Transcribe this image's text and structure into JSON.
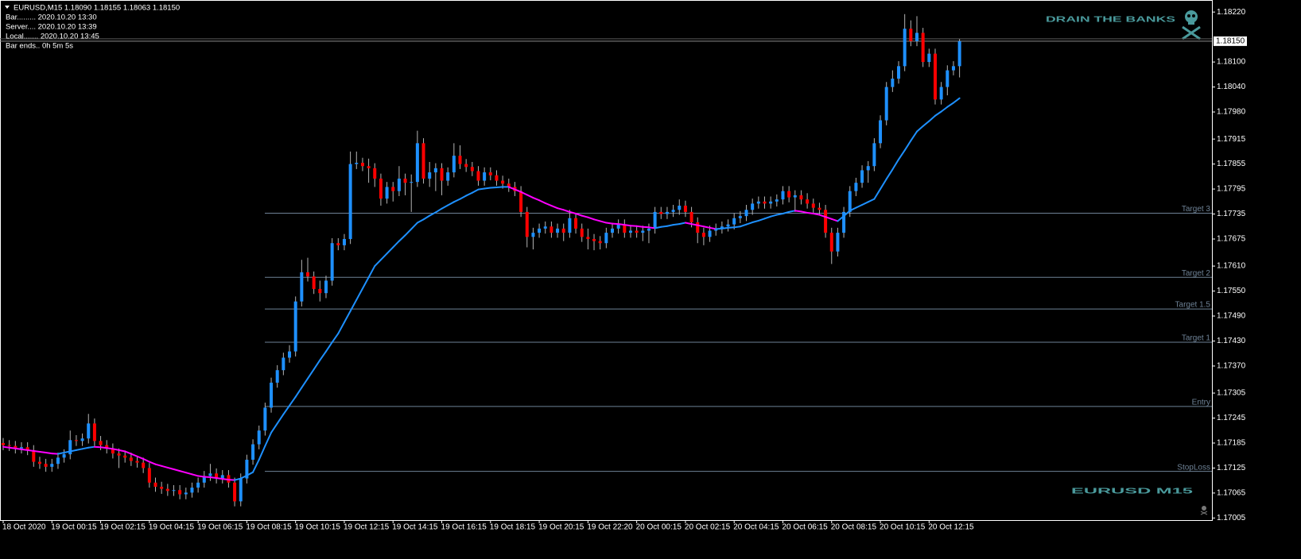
{
  "chart_data": {
    "type": "candlestick",
    "info": [
      "EURUSD,M15  1.18090 1.18155 1.18063 1.18150",
      "Bar......... 2020.10.20 13:30",
      "Server.... 2020.10.20 13:39",
      "Local....... 2020.10.20 13:45",
      "Bar ends.. 0h 5m 5s"
    ],
    "watermarks": [
      "DRAIN THE BANKS",
      "EURUSD M15"
    ],
    "categories": [
      "18 Oct 2020",
      null,
      null,
      null,
      null,
      null,
      null,
      null,
      "19 Oct 00:15",
      null,
      null,
      null,
      null,
      null,
      null,
      null,
      "19 Oct 02:15",
      null,
      null,
      null,
      null,
      null,
      null,
      null,
      "19 Oct 04:15",
      null,
      null,
      null,
      null,
      null,
      null,
      null,
      "19 Oct 06:15",
      null,
      null,
      null,
      null,
      null,
      null,
      null,
      "19 Oct 08:15",
      null,
      null,
      null,
      null,
      null,
      null,
      null,
      "19 Oct 10:15",
      null,
      null,
      null,
      null,
      null,
      null,
      null,
      "19 Oct 12:15",
      null,
      null,
      null,
      null,
      null,
      null,
      null,
      "19 Oct 14:15",
      null,
      null,
      null,
      null,
      null,
      null,
      null,
      "19 Oct 16:15",
      null,
      null,
      null,
      null,
      null,
      null,
      null,
      "19 Oct 18:15",
      null,
      null,
      null,
      null,
      null,
      null,
      null,
      "19 Oct 20:15",
      null,
      null,
      null,
      null,
      null,
      null,
      null,
      "19 Oct 22:20",
      null,
      null,
      null,
      null,
      null,
      null,
      null,
      "20 Oct 00:15",
      null,
      null,
      null,
      null,
      null,
      null,
      null,
      "20 Oct 02:15",
      null,
      null,
      null,
      null,
      null,
      null,
      null,
      "20 Oct 04:15",
      null,
      null,
      null,
      null,
      null,
      null,
      null,
      "20 Oct 06:15",
      null,
      null,
      null,
      null,
      null,
      null,
      null,
      "20 Oct 08:15",
      null,
      null,
      null,
      null,
      null,
      null,
      null,
      "20 Oct 10:15",
      null,
      null,
      null,
      null,
      null,
      null,
      null,
      "20 Oct 12:15",
      null,
      null,
      null,
      null,
      null
    ],
    "open": [
      1.17185,
      1.1718,
      1.17178,
      1.17172,
      1.17175,
      1.17168,
      1.1714,
      1.17135,
      1.17128,
      1.17135,
      1.1715,
      1.17158,
      1.17192,
      1.1719,
      1.17196,
      1.17232,
      1.1719,
      1.1718,
      1.17172,
      1.1716,
      1.17155,
      1.1715,
      1.17142,
      1.17138,
      1.17125,
      1.1709,
      1.1708,
      1.17075,
      1.1707,
      1.17072,
      1.17062,
      1.17066,
      1.17078,
      1.1709,
      1.17106,
      1.17112,
      1.171,
      1.17108,
      1.1709,
      1.17045,
      1.171,
      1.17145,
      1.17182,
      1.17215,
      1.1727,
      1.1733,
      1.1736,
      1.1739,
      1.17405,
      1.17525,
      1.17595,
      1.17585,
      1.17555,
      1.17545,
      1.17575,
      1.17665,
      1.1766,
      1.17675,
      1.17855,
      1.17858,
      1.1785,
      1.17845,
      1.1782,
      1.17772,
      1.178,
      1.1779,
      1.1782,
      1.1781,
      1.17812,
      1.17905,
      1.1782,
      1.17835,
      1.17845,
      1.17815,
      1.17835,
      1.17875,
      1.17855,
      1.17848,
      1.17838,
      1.17815,
      1.17835,
      1.17828,
      1.17815,
      1.17808,
      1.178,
      1.1779,
      1.1774,
      1.1768,
      1.1769,
      1.177,
      1.17705,
      1.1769,
      1.177,
      1.1769,
      1.17725,
      1.177,
      1.1768,
      1.17675,
      1.1767,
      1.17665,
      1.1769,
      1.177,
      1.1771,
      1.1769,
      1.17695,
      1.1769,
      1.17695,
      1.177,
      1.1774,
      1.17735,
      1.1774,
      1.17745,
      1.17755,
      1.1774,
      1.17715,
      1.1769,
      1.1768,
      1.17695,
      1.177,
      1.17705,
      1.1771,
      1.17725,
      1.1773,
      1.17745,
      1.1776,
      1.17765,
      1.1776,
      1.17765,
      1.1777,
      1.1779,
      1.17775,
      1.1778,
      1.1777,
      1.1776,
      1.1775,
      1.17745,
      1.1769,
      1.17645,
      1.1769,
      1.1774,
      1.1779,
      1.1781,
      1.1784,
      1.1785,
      1.17905,
      1.1796,
      1.1804,
      1.1806,
      1.1809,
      1.1818,
      1.1815,
      1.1817,
      1.181,
      1.1812,
      1.1801,
      1.1804,
      1.1808,
      1.1809
    ],
    "high": [
      1.17197,
      1.17192,
      1.1719,
      1.17187,
      1.17187,
      1.1718,
      1.17152,
      1.17147,
      1.17147,
      1.17162,
      1.1717,
      1.17215,
      1.17204,
      1.17208,
      1.17255,
      1.17244,
      1.17202,
      1.17192,
      1.17184,
      1.17172,
      1.17167,
      1.17162,
      1.17154,
      1.1715,
      1.17137,
      1.17102,
      1.17092,
      1.17087,
      1.17084,
      1.17084,
      1.17078,
      1.1709,
      1.17102,
      1.17118,
      1.17135,
      1.17124,
      1.1712,
      1.1712,
      1.17102,
      1.17112,
      1.17157,
      1.17194,
      1.17227,
      1.17282,
      1.17342,
      1.17372,
      1.17402,
      1.1742,
      1.17537,
      1.17625,
      1.1763,
      1.17597,
      1.17575,
      1.17587,
      1.17677,
      1.17677,
      1.17687,
      1.17885,
      1.17885,
      1.1787,
      1.17868,
      1.17857,
      1.17832,
      1.17812,
      1.17812,
      1.1785,
      1.17832,
      1.1783,
      1.17935,
      1.17917,
      1.1786,
      1.17857,
      1.17857,
      1.17847,
      1.17905,
      1.179,
      1.17867,
      1.1786,
      1.1785,
      1.17847,
      1.17847,
      1.1784,
      1.17827,
      1.1782,
      1.17812,
      1.17802,
      1.17752,
      1.17702,
      1.17712,
      1.17717,
      1.17717,
      1.17712,
      1.17712,
      1.17745,
      1.17737,
      1.17712,
      1.177,
      1.17687,
      1.17682,
      1.17702,
      1.17712,
      1.17722,
      1.17722,
      1.17707,
      1.17707,
      1.17707,
      1.17712,
      1.17752,
      1.17752,
      1.17752,
      1.17757,
      1.1777,
      1.17767,
      1.17752,
      1.17727,
      1.17702,
      1.17707,
      1.17712,
      1.17717,
      1.17722,
      1.17737,
      1.17742,
      1.17757,
      1.17772,
      1.17777,
      1.17777,
      1.17777,
      1.17782,
      1.17802,
      1.17802,
      1.17792,
      1.17792,
      1.17785,
      1.17772,
      1.17762,
      1.17757,
      1.17702,
      1.17702,
      1.17752,
      1.17802,
      1.17822,
      1.17852,
      1.17862,
      1.17917,
      1.17972,
      1.18052,
      1.1808,
      1.18102,
      1.18215,
      1.182,
      1.1821,
      1.18182,
      1.18132,
      1.18132,
      1.18052,
      1.18092,
      1.18102,
      1.18155
    ],
    "low": [
      1.17168,
      1.17166,
      1.1716,
      1.1716,
      1.17156,
      1.17128,
      1.17123,
      1.17116,
      1.17116,
      1.17123,
      1.17138,
      1.17146,
      1.17178,
      1.17178,
      1.17184,
      1.17178,
      1.17168,
      1.1716,
      1.17148,
      1.17125,
      1.17138,
      1.1713,
      1.17126,
      1.17113,
      1.17078,
      1.17068,
      1.17063,
      1.17058,
      1.17058,
      1.1705,
      1.1705,
      1.17054,
      1.17066,
      1.17078,
      1.17094,
      1.17088,
      1.17088,
      1.17078,
      1.17033,
      1.17033,
      1.17088,
      1.17133,
      1.1717,
      1.17203,
      1.17258,
      1.17318,
      1.17348,
      1.17378,
      1.17393,
      1.17513,
      1.17573,
      1.17543,
      1.17525,
      1.17533,
      1.17563,
      1.17648,
      1.17648,
      1.17663,
      1.17843,
      1.17838,
      1.1781,
      1.178,
      1.17755,
      1.1776,
      1.17765,
      1.17778,
      1.1778,
      1.1774,
      1.178,
      1.17808,
      1.178,
      1.1779,
      1.1778,
      1.17803,
      1.17823,
      1.17843,
      1.17836,
      1.17826,
      1.17803,
      1.17803,
      1.17816,
      1.17803,
      1.17796,
      1.17788,
      1.17778,
      1.17728,
      1.17655,
      1.1765,
      1.17678,
      1.17688,
      1.17678,
      1.17678,
      1.1767,
      1.17678,
      1.17688,
      1.17668,
      1.1765,
      1.17648,
      1.1765,
      1.17653,
      1.17678,
      1.17688,
      1.17678,
      1.17678,
      1.17678,
      1.1767,
      1.17665,
      1.17688,
      1.17723,
      1.17723,
      1.17728,
      1.17733,
      1.17728,
      1.17703,
      1.17665,
      1.1766,
      1.17668,
      1.17683,
      1.17688,
      1.17693,
      1.17698,
      1.17713,
      1.17718,
      1.17733,
      1.17748,
      1.17748,
      1.17748,
      1.17753,
      1.17758,
      1.17763,
      1.1774,
      1.17758,
      1.17748,
      1.17738,
      1.17733,
      1.17678,
      1.17615,
      1.17633,
      1.17678,
      1.17728,
      1.17778,
      1.17798,
      1.1781,
      1.17838,
      1.17893,
      1.17948,
      1.18028,
      1.18048,
      1.18078,
      1.18138,
      1.18138,
      1.18088,
      1.18088,
      1.17998,
      1.17998,
      1.1802,
      1.18068,
      1.18063
    ],
    "close": [
      1.1718,
      1.17178,
      1.17172,
      1.17175,
      1.17168,
      1.1714,
      1.17135,
      1.17128,
      1.17135,
      1.1715,
      1.17158,
      1.17192,
      1.1719,
      1.17196,
      1.17232,
      1.1719,
      1.1718,
      1.17172,
      1.1716,
      1.17155,
      1.1715,
      1.17142,
      1.17138,
      1.17125,
      1.1709,
      1.1708,
      1.17075,
      1.1707,
      1.17072,
      1.17062,
      1.17066,
      1.17078,
      1.1709,
      1.17106,
      1.17112,
      1.171,
      1.17108,
      1.1709,
      1.17045,
      1.171,
      1.17145,
      1.17182,
      1.17215,
      1.1727,
      1.1733,
      1.1736,
      1.1739,
      1.17405,
      1.17525,
      1.17595,
      1.17585,
      1.17555,
      1.17545,
      1.17575,
      1.17665,
      1.1766,
      1.17675,
      1.17855,
      1.17858,
      1.1785,
      1.17845,
      1.1782,
      1.17772,
      1.178,
      1.1779,
      1.1782,
      1.1781,
      1.17812,
      1.17905,
      1.1782,
      1.17835,
      1.17845,
      1.17815,
      1.17835,
      1.17875,
      1.17855,
      1.17848,
      1.17838,
      1.17815,
      1.17835,
      1.17828,
      1.17815,
      1.17808,
      1.178,
      1.1779,
      1.1774,
      1.1768,
      1.1769,
      1.177,
      1.17705,
      1.1769,
      1.177,
      1.1769,
      1.17725,
      1.177,
      1.1768,
      1.17675,
      1.1767,
      1.17665,
      1.1769,
      1.177,
      1.1771,
      1.1769,
      1.17695,
      1.1769,
      1.17695,
      1.177,
      1.1774,
      1.17735,
      1.1774,
      1.17745,
      1.17755,
      1.1774,
      1.17715,
      1.1769,
      1.1768,
      1.17695,
      1.177,
      1.17705,
      1.1771,
      1.17725,
      1.1773,
      1.17745,
      1.1776,
      1.17765,
      1.1776,
      1.17765,
      1.1777,
      1.1779,
      1.17775,
      1.1778,
      1.1777,
      1.1776,
      1.1775,
      1.17745,
      1.1769,
      1.17645,
      1.1769,
      1.1774,
      1.1779,
      1.1781,
      1.1784,
      1.1785,
      1.17905,
      1.1796,
      1.1804,
      1.1806,
      1.1809,
      1.1818,
      1.1815,
      1.1817,
      1.181,
      1.1812,
      1.1801,
      1.1804,
      1.1808,
      1.1809,
      1.1815
    ],
    "ma": {
      "values": [
        1.17176,
        1.17174,
        1.17172,
        1.1717,
        1.17168,
        1.17166,
        1.17164,
        1.17162,
        1.1716,
        1.17159,
        1.17162,
        1.17165,
        1.17168,
        1.17171,
        1.17174,
        1.17176,
        1.17175,
        1.17173,
        1.17171,
        1.17168,
        1.17165,
        1.17159,
        1.17153,
        1.17147,
        1.1714,
        1.17134,
        1.1713,
        1.17126,
        1.17122,
        1.17118,
        1.17114,
        1.1711,
        1.17106,
        1.17104,
        1.17103,
        1.17101,
        1.17099,
        1.17097,
        1.17096,
        1.171,
        1.17107,
        1.17115,
        1.17145,
        1.17178,
        1.1721,
        1.17232,
        1.17254,
        1.17275,
        1.17296,
        1.17318,
        1.1734,
        1.17362,
        1.17384,
        1.17405,
        1.17427,
        1.17448,
        1.17475,
        1.17502,
        1.17529,
        1.17556,
        1.17583,
        1.1761,
        1.17625,
        1.1764,
        1.17655,
        1.1767,
        1.17684,
        1.17699,
        1.17714,
        1.17722,
        1.17731,
        1.17739,
        1.17748,
        1.17756,
        1.17764,
        1.17771,
        1.17779,
        1.17786,
        1.17794,
        1.17796,
        1.17798,
        1.17799,
        1.178,
        1.178,
        1.17794,
        1.17788,
        1.17781,
        1.17774,
        1.17768,
        1.17761,
        1.17755,
        1.17749,
        1.17745,
        1.1774,
        1.17736,
        1.17731,
        1.17727,
        1.17722,
        1.17718,
        1.17714,
        1.17712,
        1.17711,
        1.17709,
        1.17707,
        1.17706,
        1.17704,
        1.17703,
        1.17701,
        1.17704,
        1.17706,
        1.17709,
        1.17711,
        1.17714,
        1.17711,
        1.17708,
        1.17705,
        1.17702,
        1.17699,
        1.177,
        1.17702,
        1.17703,
        1.17705,
        1.1771,
        1.17715,
        1.17719,
        1.17724,
        1.17729,
        1.17733,
        1.17736,
        1.1774,
        1.17743,
        1.17741,
        1.17738,
        1.17736,
        1.17733,
        1.17728,
        1.17723,
        1.17718,
        1.1773,
        1.17743,
        1.1775,
        1.17757,
        1.17764,
        1.17771,
        1.17795,
        1.17819,
        1.17842,
        1.17866,
        1.17888,
        1.17911,
        1.17933,
        1.17946,
        1.17958,
        1.17971,
        1.17981,
        1.17992,
        1.18002,
        1.18013
      ],
      "up_color": "#1e90ff",
      "down_color": "#ff00ff"
    },
    "up_color": "#1e90ff",
    "down_color": "#ff0000",
    "wick_color": "#b4b4b4",
    "levels": [
      {
        "name": "Target 3",
        "value": 1.17737
      },
      {
        "name": "Target 2",
        "value": 1.17583
      },
      {
        "name": "Target 1.5",
        "value": 1.17507
      },
      {
        "name": "Target 1",
        "value": 1.17427
      },
      {
        "name": "Entry",
        "value": 1.17273
      },
      {
        "name": "StopLoss",
        "value": 1.17117
      }
    ],
    "level_color": "#6e8296",
    "current_price": {
      "value": 1.1815,
      "label": "1.18150"
    },
    "ylim": [
      1.17,
      1.18247
    ],
    "yticks": [
      {
        "value": 1.1822,
        "label": "1.18220"
      },
      {
        "value": 1.181,
        "label": "1.18100"
      },
      {
        "value": 1.1804,
        "label": "1.18040"
      },
      {
        "value": 1.1798,
        "label": "1.17980"
      },
      {
        "value": 1.17915,
        "label": "1.17915"
      },
      {
        "value": 1.17855,
        "label": "1.17855"
      },
      {
        "value": 1.17795,
        "label": "1.17795"
      },
      {
        "value": 1.17735,
        "label": "1.17735"
      },
      {
        "value": 1.17675,
        "label": "1.17675"
      },
      {
        "value": 1.1761,
        "label": "1.17610"
      },
      {
        "value": 1.1755,
        "label": "1.17550"
      },
      {
        "value": 1.1749,
        "label": "1.17490"
      },
      {
        "value": 1.1743,
        "label": "1.17430"
      },
      {
        "value": 1.1737,
        "label": "1.17370"
      },
      {
        "value": 1.17305,
        "label": "1.17305"
      },
      {
        "value": 1.17245,
        "label": "1.17245"
      },
      {
        "value": 1.17185,
        "label": "1.17185"
      },
      {
        "value": 1.17125,
        "label": "1.17125"
      },
      {
        "value": 1.17065,
        "label": "1.17065"
      },
      {
        "value": 1.17005,
        "label": "1.17005"
      }
    ],
    "grid": false
  }
}
